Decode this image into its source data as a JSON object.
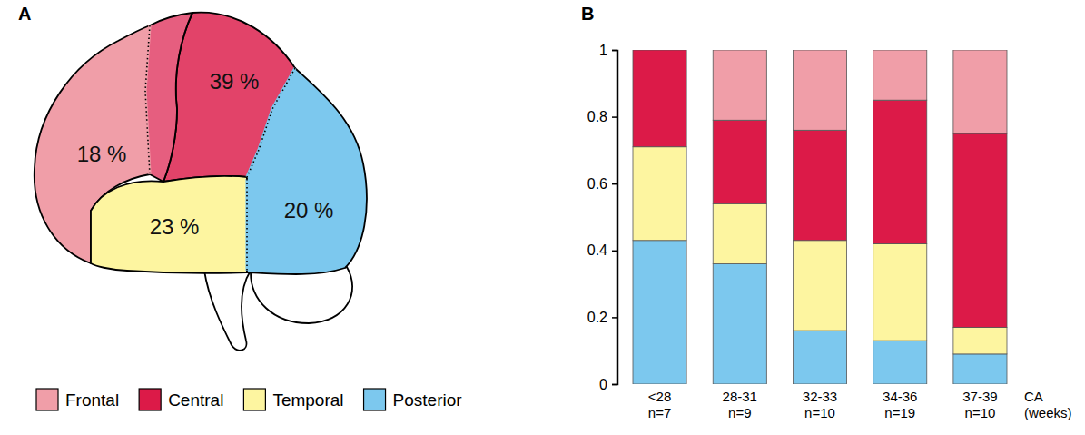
{
  "chart_data": [
    {
      "type": "region_map",
      "title": "A",
      "categories": [
        "Frontal",
        "Central",
        "Temporal",
        "Posterior"
      ],
      "values": [
        18,
        39,
        23,
        20
      ],
      "value_labels": [
        "18 %",
        "39 %",
        "23 %",
        "20 %"
      ],
      "data_labels": true
    },
    {
      "type": "bar",
      "title": "B",
      "stacked": true,
      "legend": "bottom-left",
      "categories": [
        "<28",
        "28-31",
        "32-33",
        "34-36",
        "37-39"
      ],
      "sample_sizes": [
        "n=7",
        "n=9",
        "n=10",
        "n=19",
        "n=10"
      ],
      "x_label": "CA (weeks)",
      "ylim": [
        0,
        1
      ],
      "yticks": [
        0,
        0.2,
        0.4,
        0.6,
        0.8,
        1
      ],
      "series": [
        {
          "name": "Posterior",
          "color": "#7cc8ee",
          "values": [
            0.43,
            0.36,
            0.16,
            0.13,
            0.09
          ]
        },
        {
          "name": "Temporal",
          "color": "#fdf5a0",
          "values": [
            0.28,
            0.18,
            0.27,
            0.29,
            0.08
          ]
        },
        {
          "name": "Central",
          "color": "#dc1a48",
          "values": [
            0.29,
            0.25,
            0.33,
            0.43,
            0.58
          ]
        },
        {
          "name": "Frontal",
          "color": "#f09ea8",
          "values": [
            0,
            0.21,
            0.24,
            0.15,
            0.25
          ]
        }
      ]
    }
  ]
}
